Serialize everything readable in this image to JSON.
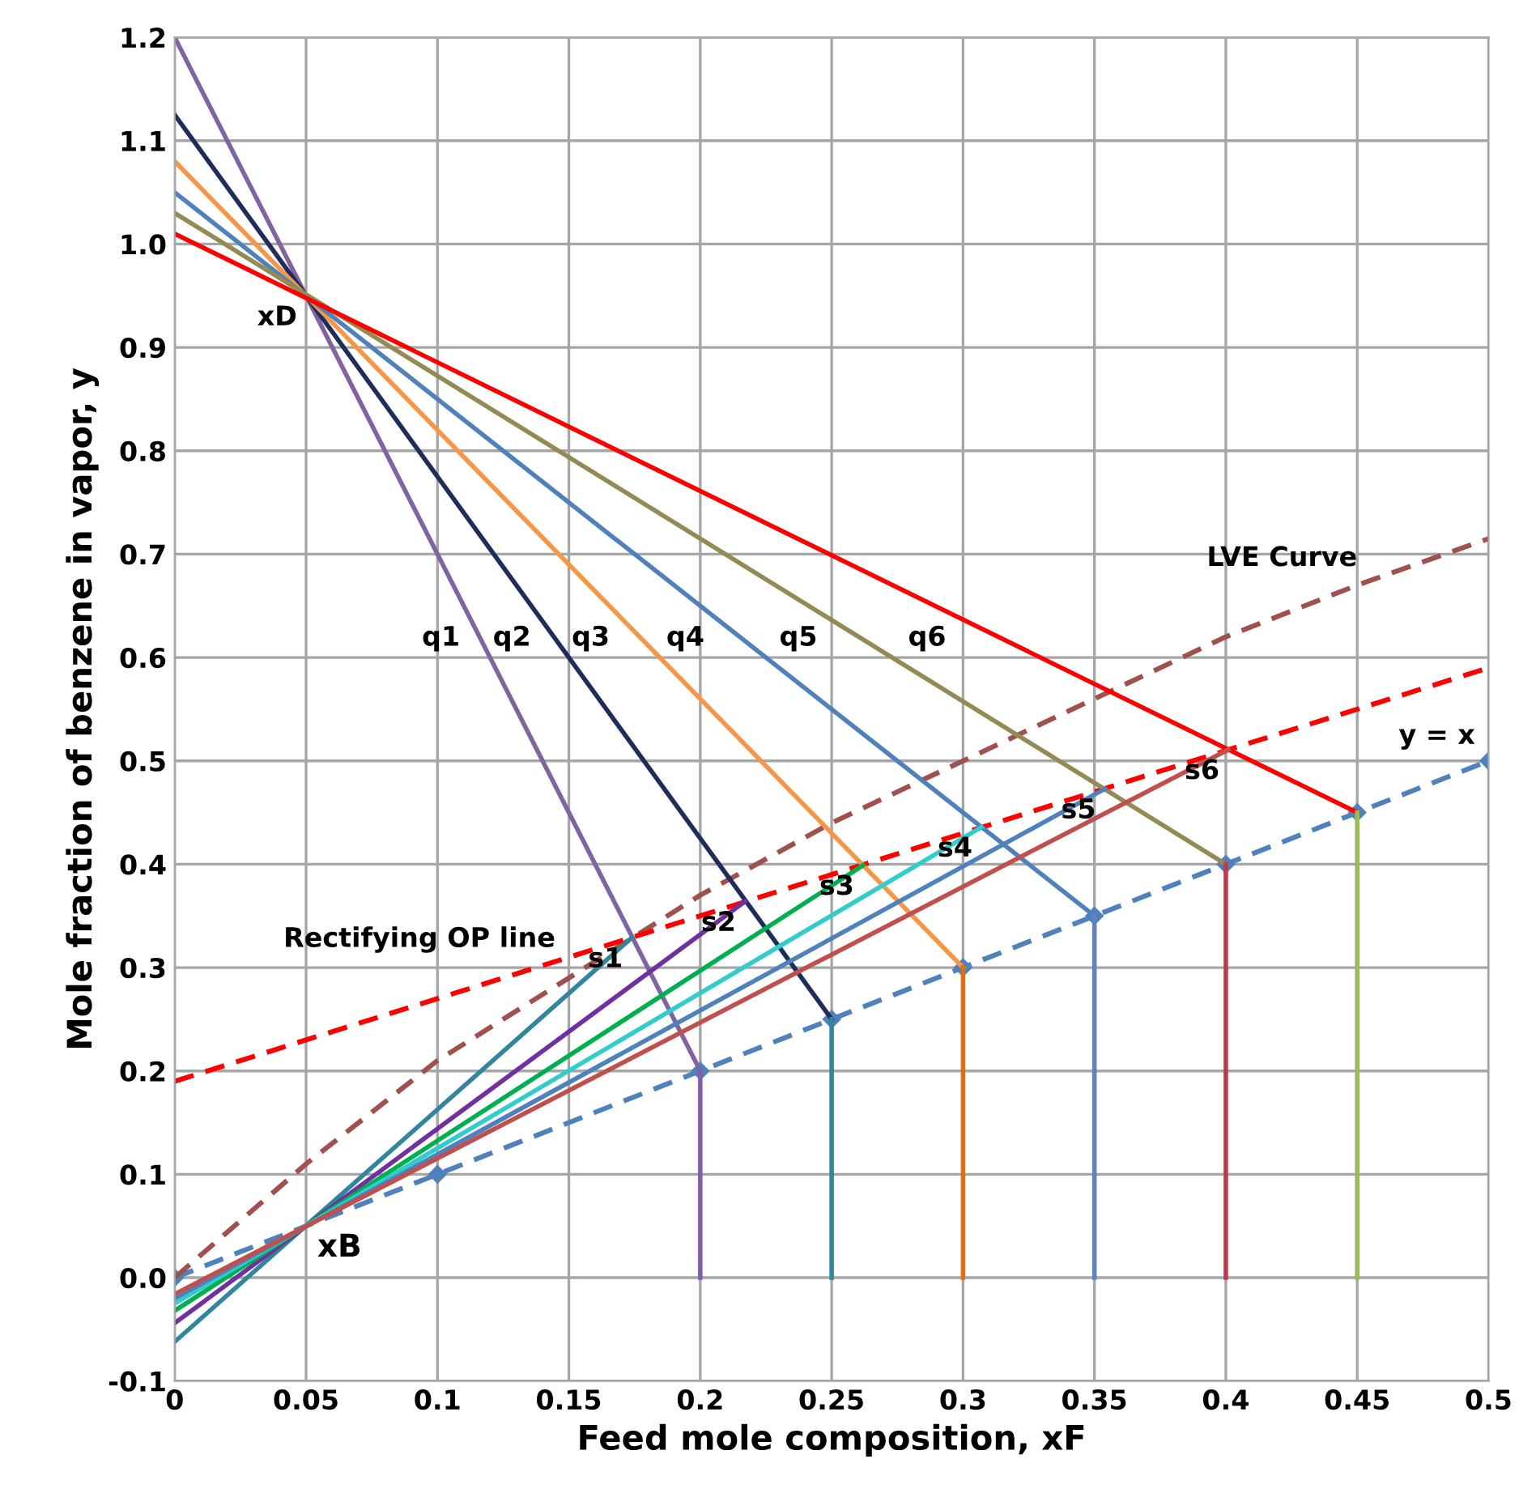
{
  "chart_data": {
    "type": "line",
    "xlabel": "Feed mole composition, xF",
    "ylabel": "Mole fraction of benzene in vapor, y",
    "xlim": [
      0,
      0.5
    ],
    "xticks": [
      0,
      0.05,
      0.1,
      0.15,
      0.2,
      0.25,
      0.3,
      0.35,
      0.4,
      0.45,
      0.5
    ],
    "ylim": [
      -0.1,
      1.2
    ],
    "yticks": [
      {
        "value": -0.1,
        "label": "-0.1"
      },
      {
        "value": 0,
        "label": "0.0"
      },
      {
        "value": 0.1,
        "label": "0.1"
      },
      {
        "value": 0.2,
        "label": "0.2"
      },
      {
        "value": 0.3,
        "label": "0.3"
      },
      {
        "value": 0.4,
        "label": "0.4"
      },
      {
        "value": 0.5,
        "label": "0.5"
      },
      {
        "value": 0.6,
        "label": "0.6"
      },
      {
        "value": 0.7,
        "label": "0.7"
      },
      {
        "value": 0.8,
        "label": "0.8"
      },
      {
        "value": 0.9,
        "label": "0.9"
      },
      {
        "value": 1.0,
        "label": "1.0"
      },
      {
        "value": 1.1,
        "label": "1.1"
      },
      {
        "value": 1.2,
        "label": "1.2"
      }
    ],
    "grid": true,
    "legend": false,
    "series": [
      {
        "x": [
          0,
          0.1,
          0.2,
          0.25,
          0.3,
          0.35,
          0.4,
          0.45,
          0.5
        ],
        "values": [
          0,
          0.1,
          0.2,
          0.25,
          0.3,
          0.35,
          0.4,
          0.45,
          0.5
        ],
        "color": "#4f81bd",
        "line_style": "dashed",
        "marker": "diamond"
      },
      {
        "x": [
          0,
          0.05,
          0.1,
          0.15,
          0.2,
          0.25,
          0.3,
          0.35,
          0.4,
          0.45,
          0.5
        ],
        "values": [
          0,
          0.11,
          0.21,
          0.29,
          0.37,
          0.44,
          0.5,
          0.56,
          0.62,
          0.67,
          0.715
        ],
        "color": "#a0504d",
        "line_style": "dashed",
        "marker": "none"
      },
      {
        "x": [
          0,
          0.5
        ],
        "values": [
          0.19,
          0.59
        ],
        "color": "#ff0000",
        "line_style": "dashed",
        "marker": "none"
      },
      {
        "x": [
          0,
          0.2
        ],
        "values": [
          1.2,
          0.2
        ],
        "color": "#8064a2",
        "line_style": "solid",
        "marker": "none"
      },
      {
        "x": [
          0,
          0.25
        ],
        "values": [
          1.125,
          0.25
        ],
        "color": "#1f2d5a",
        "line_style": "solid",
        "marker": "none"
      },
      {
        "x": [
          0,
          0.3
        ],
        "values": [
          1.08,
          0.3
        ],
        "color": "#f79646",
        "line_style": "solid",
        "marker": "none"
      },
      {
        "x": [
          0,
          0.35
        ],
        "values": [
          1.05,
          0.35
        ],
        "color": "#4f81bd",
        "line_style": "solid",
        "marker": "none"
      },
      {
        "x": [
          0,
          0.4
        ],
        "values": [
          1.03,
          0.4
        ],
        "color": "#948a54",
        "line_style": "solid",
        "marker": "none"
      },
      {
        "x": [
          0,
          0.45
        ],
        "values": [
          1.01,
          0.45
        ],
        "color": "#ff0000",
        "line_style": "solid",
        "marker": "none"
      },
      {
        "x": [
          0.2,
          0.2
        ],
        "values": [
          0,
          0.2
        ],
        "color": "#7f5fa8",
        "line_style": "solid",
        "marker": "none"
      },
      {
        "x": [
          0.25,
          0.25
        ],
        "values": [
          0,
          0.25
        ],
        "color": "#31859c",
        "line_style": "solid",
        "marker": "none"
      },
      {
        "x": [
          0.3,
          0.3
        ],
        "values": [
          0,
          0.3
        ],
        "color": "#e46c0a",
        "line_style": "solid",
        "marker": "none"
      },
      {
        "x": [
          0.35,
          0.35
        ],
        "values": [
          0,
          0.35
        ],
        "color": "#5b84c4",
        "line_style": "solid",
        "marker": "none"
      },
      {
        "x": [
          0.4,
          0.4
        ],
        "values": [
          0,
          0.4
        ],
        "color": "#c0394b",
        "line_style": "solid",
        "marker": "none"
      },
      {
        "x": [
          0.45,
          0.45
        ],
        "values": [
          0,
          0.45
        ],
        "color": "#9bbb59",
        "line_style": "solid",
        "marker": "none"
      },
      {
        "x": [
          0,
          0.174
        ],
        "values": [
          -0.062,
          0.329
        ],
        "color": "#31859c",
        "line_style": "solid",
        "marker": "none"
      },
      {
        "x": [
          0,
          0.217
        ],
        "values": [
          -0.044,
          0.364
        ],
        "color": "#7030a0",
        "line_style": "solid",
        "marker": "none"
      },
      {
        "x": [
          0,
          0.262
        ],
        "values": [
          -0.032,
          0.399
        ],
        "color": "#00b050",
        "line_style": "solid",
        "marker": "none"
      },
      {
        "x": [
          0,
          0.307
        ],
        "values": [
          -0.025,
          0.436
        ],
        "color": "#33cccc",
        "line_style": "solid",
        "marker": "none"
      },
      {
        "x": [
          0,
          0.354
        ],
        "values": [
          -0.02,
          0.473
        ],
        "color": "#4f81bd",
        "line_style": "solid",
        "marker": "none"
      },
      {
        "x": [
          0,
          0.401
        ],
        "values": [
          -0.016,
          0.511
        ],
        "color": "#c0504d",
        "line_style": "solid",
        "marker": "none"
      }
    ],
    "annotations": [
      {
        "text": "xD",
        "x": 0.05,
        "y": 0.95
      },
      {
        "text": "xB",
        "x": 0.05,
        "y": 0.05
      },
      {
        "text": "q1",
        "x": 0.112,
        "y": 0.64
      },
      {
        "text": "q2",
        "x": 0.139,
        "y": 0.64
      },
      {
        "text": "q3",
        "x": 0.169,
        "y": 0.64
      },
      {
        "text": "q4",
        "x": 0.205,
        "y": 0.64
      },
      {
        "text": "q5",
        "x": 0.248,
        "y": 0.64
      },
      {
        "text": "q6",
        "x": 0.297,
        "y": 0.64
      },
      {
        "text": "s1",
        "x": 0.174,
        "y": 0.329
      },
      {
        "text": "s2",
        "x": 0.217,
        "y": 0.364
      },
      {
        "text": "s3",
        "x": 0.262,
        "y": 0.399
      },
      {
        "text": "s4",
        "x": 0.307,
        "y": 0.436
      },
      {
        "text": "s5",
        "x": 0.354,
        "y": 0.473
      },
      {
        "text": "s6",
        "x": 0.401,
        "y": 0.511
      },
      {
        "text": "LVE Curve",
        "x": 0.45,
        "y": 0.67
      },
      {
        "text": "y = x",
        "x": 0.5,
        "y": 0.5
      },
      {
        "text": "Rectifying OP line",
        "x": 0.15,
        "y": 0.31
      }
    ]
  }
}
